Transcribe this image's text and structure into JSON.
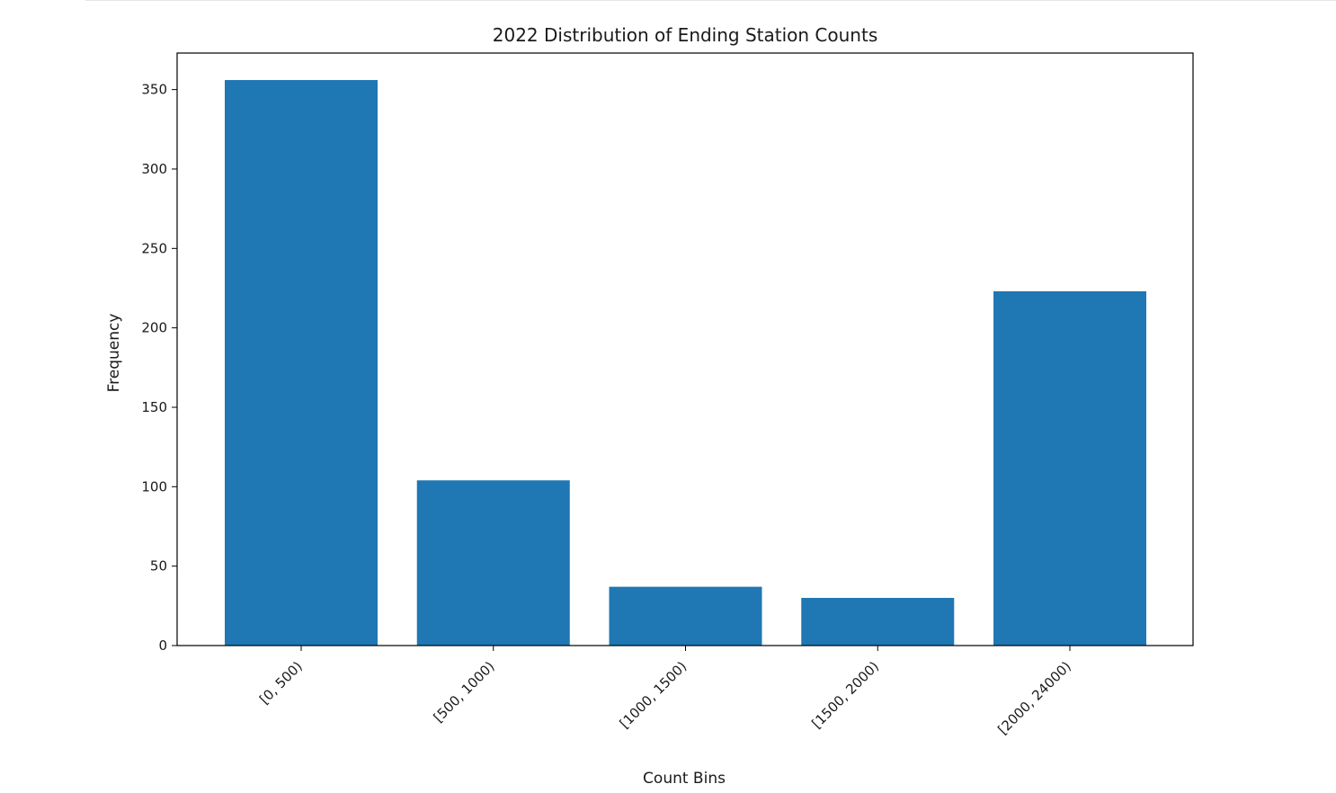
{
  "chart_data": {
    "type": "bar",
    "title": "2022 Distribution of Ending Station Counts",
    "xlabel": "Count Bins",
    "ylabel": "Frequency",
    "categories": [
      "[0, 500)",
      "[500, 1000)",
      "[1000, 1500)",
      "[1500, 2000)",
      "[2000, 24000)"
    ],
    "values": [
      356,
      104,
      37,
      30,
      223
    ],
    "ylim": [
      0,
      373
    ],
    "yticks": [
      0,
      50,
      100,
      150,
      200,
      250,
      300,
      350
    ],
    "bar_color": "#1f77b4",
    "grid": false,
    "legend": "none"
  }
}
